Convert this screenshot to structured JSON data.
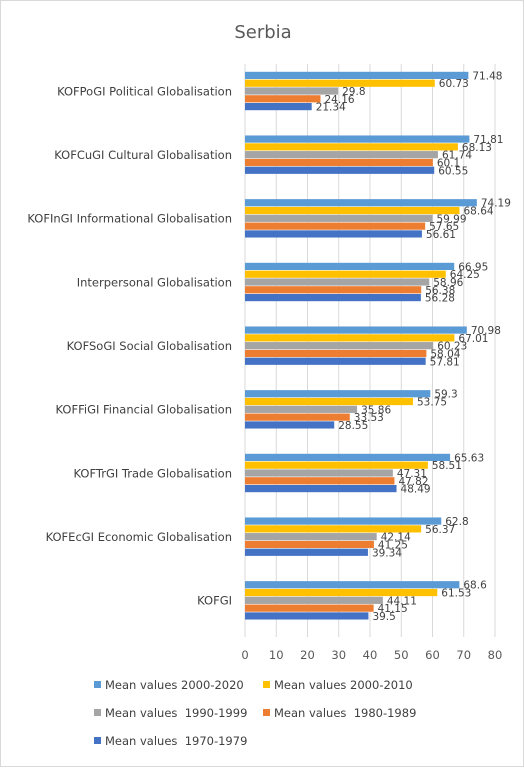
{
  "chart_data": {
    "type": "bar",
    "orientation": "horizontal",
    "title": "Serbia",
    "xlabel": "",
    "ylabel": "",
    "xlim": [
      0,
      80
    ],
    "xticks": [
      0,
      10,
      20,
      30,
      40,
      50,
      60,
      70,
      80
    ],
    "grid": true,
    "legend_position": "bottom",
    "categories": [
      "KOFPoGI Political Globalisation",
      "KOFCuGI Cultural Globalisation",
      "KOFInGI Informational Globalisation",
      "Interpersonal Globalisation",
      "KOFSoGI Social Globalisation",
      "KOFFiGI Financial Globalisation",
      "KOFTrGI Trade Globalisation",
      "KOFEcGI Economic Globalisation",
      "KOFGI"
    ],
    "series": [
      {
        "name": "Mean values 2000-2020",
        "color": "#5b9bd5",
        "values": [
          71.48,
          71.81,
          74.19,
          66.95,
          70.98,
          59.3,
          65.63,
          62.8,
          68.6
        ],
        "labels": [
          "71.48",
          "71.81",
          "74.19",
          "66.95",
          "70.98",
          "59.3",
          "65.63",
          "62.8",
          "68.6"
        ]
      },
      {
        "name": "Mean values 2000-2010",
        "color": "#ffc000",
        "values": [
          60.73,
          68.13,
          68.64,
          64.25,
          67.01,
          53.75,
          58.51,
          56.37,
          61.53
        ],
        "labels": [
          "60.73",
          "68.13",
          "68.64",
          "64.25",
          "67.01",
          "53.75",
          "58.51",
          "56.37",
          "61.53"
        ]
      },
      {
        "name": "Mean values  1990-1999",
        "color": "#a5a5a5",
        "values": [
          29.8,
          61.74,
          59.99,
          58.96,
          60.23,
          35.86,
          47.31,
          42.14,
          44.11
        ],
        "labels": [
          "29.8",
          "61.74",
          "59.99",
          "58.96",
          "60.23",
          "35.86",
          "47.31",
          "42.14",
          "44.11"
        ]
      },
      {
        "name": "Mean values  1980-1989",
        "color": "#ed7d31",
        "values": [
          24.16,
          60.1,
          57.65,
          56.38,
          58.04,
          33.53,
          47.82,
          41.25,
          41.15
        ],
        "labels": [
          "24.16",
          "60.1",
          "57.65",
          "56.38",
          "58.04",
          "33.53",
          "47.82",
          "41.25",
          "41.15"
        ]
      },
      {
        "name": "Mean values  1970-1979",
        "color": "#4472c4",
        "values": [
          21.34,
          60.55,
          56.61,
          56.28,
          57.81,
          28.55,
          48.49,
          39.34,
          39.5
        ],
        "labels": [
          "21.34",
          "60.55",
          "56.61",
          "56.28",
          "57.81",
          "28.55",
          "48.49",
          "39.34",
          "39.5"
        ]
      }
    ]
  }
}
